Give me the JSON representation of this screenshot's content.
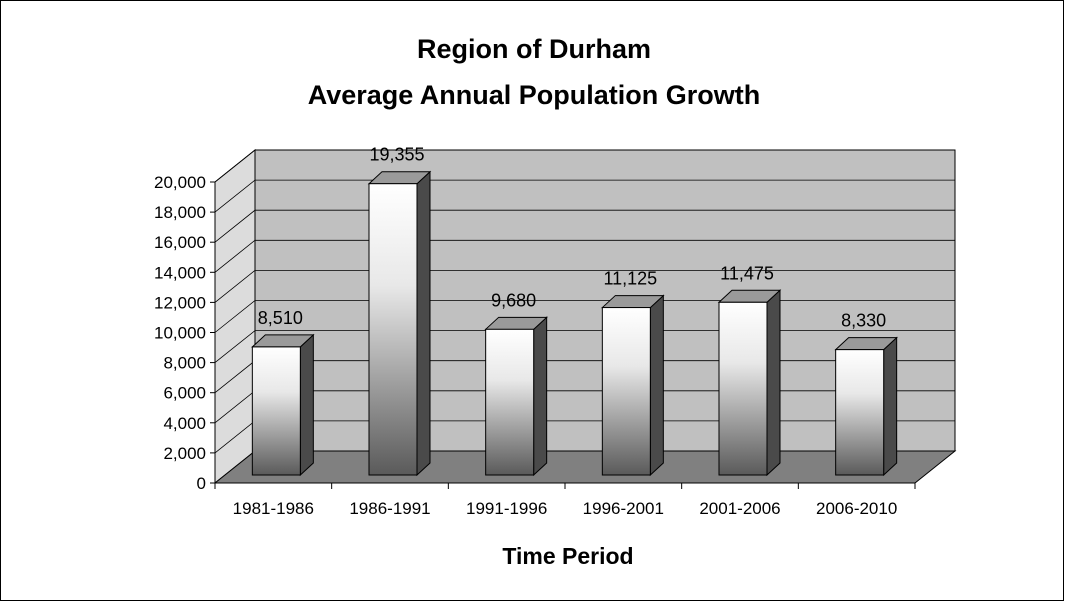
{
  "chart_data": {
    "type": "bar",
    "title": [
      "Region of Durham",
      "Average Annual Population Growth"
    ],
    "xlabel": "Time Period",
    "ylabel": "",
    "categories": [
      "1981-1986",
      "1986-1991",
      "1991-1996",
      "1996-2001",
      "2001-2006",
      "2006-2010"
    ],
    "values": [
      8510,
      19355,
      9680,
      11125,
      11475,
      8330
    ],
    "data_labels": [
      "8,510",
      "19,355",
      "9,680",
      "11,125",
      "11,475",
      "8,330"
    ],
    "ylim": [
      0,
      20000
    ],
    "yticks": [
      0,
      2000,
      4000,
      6000,
      8000,
      10000,
      12000,
      14000,
      16000,
      18000,
      20000
    ],
    "ytick_labels": [
      "0",
      "2,000",
      "4,000",
      "6,000",
      "8,000",
      "10,000",
      "12,000",
      "14,000",
      "16,000",
      "18,000",
      "20,000"
    ],
    "grid": true,
    "legend": "none",
    "style": "3d",
    "colors": {
      "back_wall": "#c0c0c0",
      "floor": "#808080",
      "side_wall": "#dcdcdc",
      "bar_light": "#ffffff",
      "bar_dark": "#5a5a5a",
      "bar_side": "#4a4a4a",
      "bar_top": "#9a9a9a"
    }
  }
}
